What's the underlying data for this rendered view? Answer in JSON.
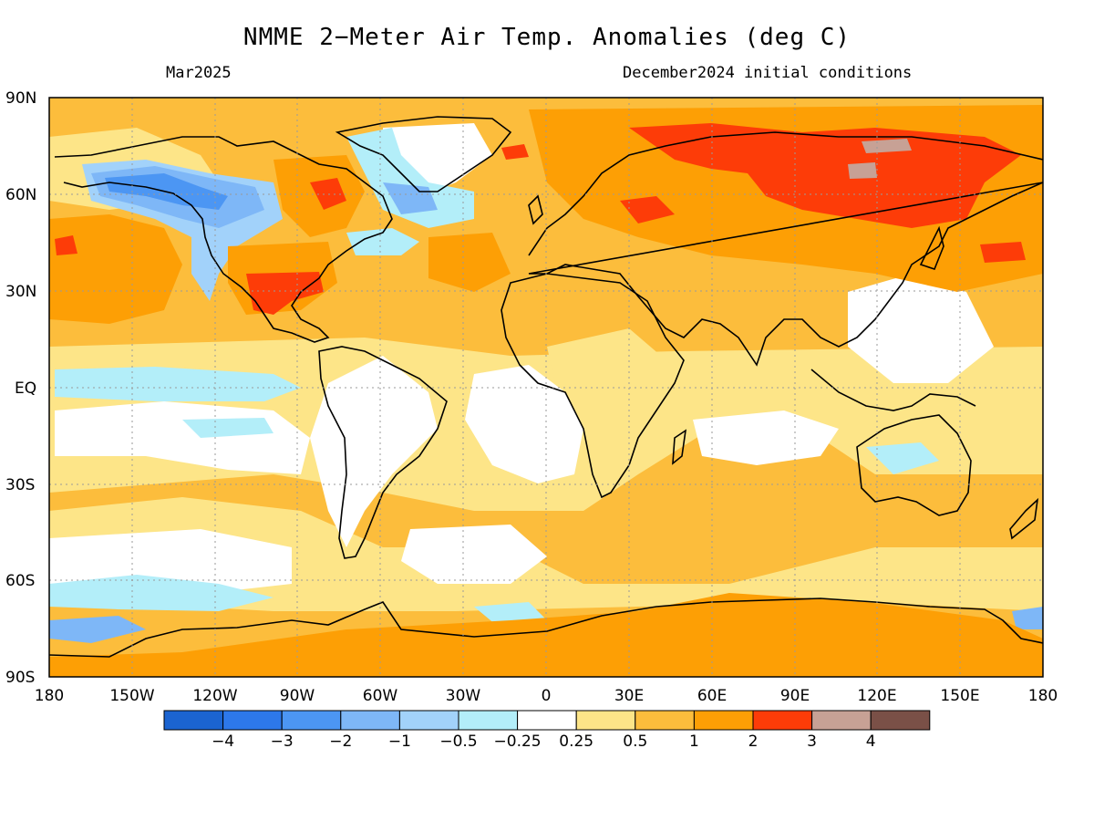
{
  "title": "NMME 2−Meter Air Temp. Anomalies (deg C)",
  "valid_month": "Mar2025",
  "initial_conditions": "December2024 initial conditions",
  "map": {
    "projection": "equirectangular",
    "lon_range": [
      -180,
      180
    ],
    "lat_range": [
      -90,
      90
    ],
    "lat_labels": [
      "90N",
      "60N",
      "30N",
      "EQ",
      "30S",
      "60S",
      "90S"
    ],
    "lon_labels": [
      "180",
      "150W",
      "120W",
      "90W",
      "60W",
      "30W",
      "0",
      "30E",
      "60E",
      "90E",
      "120E",
      "150E",
      "180"
    ],
    "gridlines": true
  },
  "colorbar": {
    "labels": [
      "−4",
      "−3",
      "−2",
      "−1",
      "−0.5",
      "−0.25",
      "0.25",
      "0.5",
      "1",
      "2",
      "3",
      "4"
    ],
    "colors": [
      "#1b64d1",
      "#2d78ea",
      "#4c96f3",
      "#7eb7f7",
      "#a2d2fa",
      "#b3eef9",
      "#ffffff",
      "#fde588",
      "#fcbd3c",
      "#fd9f05",
      "#fd3c08",
      "#c7a195",
      "#7a5047"
    ]
  }
}
